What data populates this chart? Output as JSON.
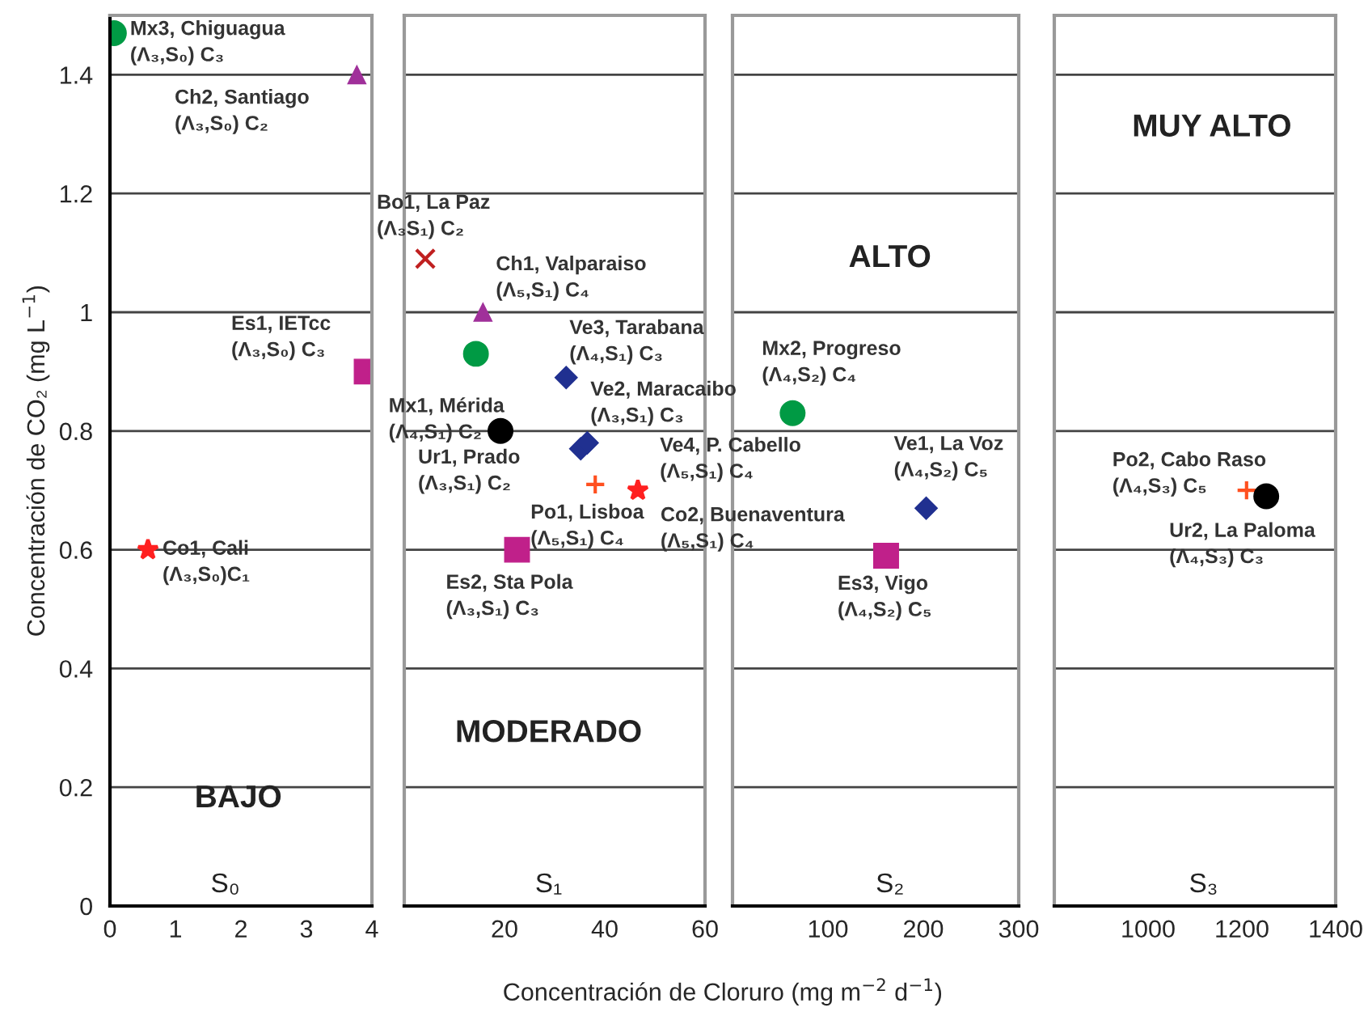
{
  "chart_data": [
    {
      "type": "scatter",
      "xlim": [
        0,
        4
      ],
      "xticks": [
        0,
        1,
        2,
        3,
        4
      ],
      "ylim": [
        0,
        1.5
      ],
      "yticks": [
        0,
        0.2,
        0.4,
        0.6,
        0.8,
        1,
        1.2,
        1.4
      ],
      "grid": "y",
      "ylabel": "Concentración de CO₂ (mg L$^{−1}$)",
      "xlabel": "Concentración de Cloruro (mg m$^{−2}$ d$^{−1}$)",
      "series": [
        {
          "color": "#009a44",
          "marker": "circle",
          "x": [
            0.06
          ],
          "values": [
            1.47
          ]
        },
        {
          "color": "#a0309a",
          "marker": "triangle",
          "x": [
            3.77
          ],
          "values": [
            1.4
          ]
        },
        {
          "color": "#c0208a",
          "marker": "square",
          "x": [
            3.92
          ],
          "values": [
            0.9
          ]
        },
        {
          "color": "#ff2020",
          "marker": "star",
          "x": [
            0.58
          ],
          "values": [
            0.6
          ]
        }
      ],
      "annotations": [
        {
          "text": "Mx3, Chiguagua\n(Λ₃,S₀) C₃",
          "x": 0.06,
          "y": 1.47
        },
        {
          "text": "Co1, Cali\n(Λ₃,S₀)C₁",
          "x": 0.58,
          "y": 0.6
        },
        "Ch2, Santiago\n(Λ₃,S₀) C₂",
        "Es1, IETcc\n(Λ₃,S₀) C₃",
        "BAJO",
        "S₀"
      ]
    },
    {
      "type": "scatter",
      "xlim": [
        0,
        60
      ],
      "xticks": [
        20,
        40,
        60
      ],
      "ylim": [
        0,
        1.5
      ],
      "yticks": [
        0,
        0.2,
        0.4,
        0.6,
        0.8,
        1,
        1.2,
        1.4
      ],
      "grid": "y",
      "tick_labels": "x",
      "series": [
        {
          "color": "#c02020",
          "marker": "cross",
          "x": [
            4.2
          ],
          "values": [
            1.09
          ]
        },
        {
          "color": "#a0309a",
          "marker": "triangle",
          "x": [
            15.7
          ],
          "values": [
            1.0
          ]
        },
        {
          "color": "#009a44",
          "marker": "circle",
          "x": [
            14.3
          ],
          "values": [
            0.93
          ]
        },
        {
          "color": "#203090",
          "marker": "diamond",
          "x": [
            32.3,
            35.2,
            36.5
          ],
          "values": [
            0.89,
            0.77,
            0.78
          ]
        },
        {
          "color": "#000000",
          "marker": "circle",
          "x": [
            19.2
          ],
          "values": [
            0.8
          ]
        },
        {
          "color": "#ff5020",
          "marker": "plus",
          "x": [
            38.1
          ],
          "values": [
            0.71
          ]
        },
        {
          "color": "#ff2020",
          "marker": "star",
          "x": [
            46.6
          ],
          "values": [
            0.7
          ]
        },
        {
          "color": "#c0208a",
          "marker": "square",
          "x": [
            22.5
          ],
          "values": [
            0.6
          ]
        }
      ],
      "annotations": [
        {
          "text": "Bo1, La Paz\n(Λ₃S₁) C₂",
          "x": 4.2,
          "y": 1.09
        },
        {
          "text": "Ch1, Valparaiso\n(Λ₅,S₁) C₄",
          "x": 15.7,
          "y": 1.0
        },
        {
          "text": "Mx1, Mérida\n(Λ₄,S₁) C₂",
          "x": 14.3,
          "y": 0.93
        },
        {
          "text": "Ve3, Tarabana\n(Λ₄,S₁) C₃",
          "x": 32.3,
          "y": 0.89
        },
        {
          "text": "Ve2, Maracaibo\n(Λ₃,S₁) C₃",
          "x": 35.2,
          "y": 0.77
        },
        {
          "text": "Ur1, Prado\n(Λ₃,S₁) C₂",
          "x": 19.2,
          "y": 0.8
        },
        {
          "text": "Po1, Lisboa\n(Λ₅,S₁) C₄",
          "x": 38.1,
          "y": 0.71
        },
        {
          "text": "Co2, Buenaventura\n(Λ₅,S₁) C₄",
          "x": 46.6,
          "y": 0.7
        },
        {
          "text": "Es2, Sta Pola\n(Λ₃,S₁) C₃",
          "x": 22.5,
          "y": 0.6
        },
        "Ve4, P. Cabello\n(Λ₅,S₁) C₄",
        "MODERADO",
        "S₁"
      ]
    },
    {
      "type": "scatter",
      "xlim": [
        0,
        300
      ],
      "xticks": [
        100,
        200,
        300
      ],
      "ylim": [
        0,
        1.5
      ],
      "yticks": [
        0,
        0.2,
        0.4,
        0.6,
        0.8,
        1,
        1.2,
        1.4
      ],
      "grid": "y",
      "tick_labels": "x",
      "series": [
        {
          "color": "#009a44",
          "marker": "circle",
          "x": [
            63
          ],
          "values": [
            0.83
          ]
        },
        {
          "color": "#203090",
          "marker": "diamond",
          "x": [
            203
          ],
          "values": [
            0.67
          ]
        },
        {
          "color": "#c0208a",
          "marker": "square",
          "x": [
            161
          ],
          "values": [
            0.59
          ]
        }
      ],
      "annotations": [
        {
          "text": "Mx2, Progreso\n(Λ₄,S₂) C₄",
          "x": 63,
          "y": 0.83
        },
        {
          "text": "Ve1, La Voz\n(Λ₄,S₂) C₅",
          "x": 203,
          "y": 0.67
        },
        {
          "text": "Es3, Vigo\n(Λ₄,S₂) C₅",
          "x": 161,
          "y": 0.59
        },
        "ALTO",
        "S₂"
      ]
    },
    {
      "type": "scatter",
      "xlim": [
        800,
        1400
      ],
      "xticks": [
        1000,
        1200,
        1400
      ],
      "ylim": [
        0,
        1.5
      ],
      "yticks": [
        0,
        0.2,
        0.4,
        0.6,
        0.8,
        1,
        1.2,
        1.4
      ],
      "grid": "y",
      "tick_labels": "x",
      "series": [
        {
          "color": "#ff5020",
          "marker": "plus",
          "x": [
            1210
          ],
          "values": [
            0.7
          ]
        },
        {
          "color": "#000000",
          "marker": "circle",
          "x": [
            1252
          ],
          "values": [
            0.69
          ]
        }
      ],
      "annotations": [
        {
          "text": "Po2, Cabo Raso\n(Λ₄,S₃) C₅",
          "x": 1210,
          "y": 0.7
        },
        {
          "text": "Ur2, La Paloma\n(Λ₄,S₃) C₃",
          "x": 1252,
          "y": 0.69
        },
        "MUY ALTO",
        "S₃"
      ]
    }
  ]
}
